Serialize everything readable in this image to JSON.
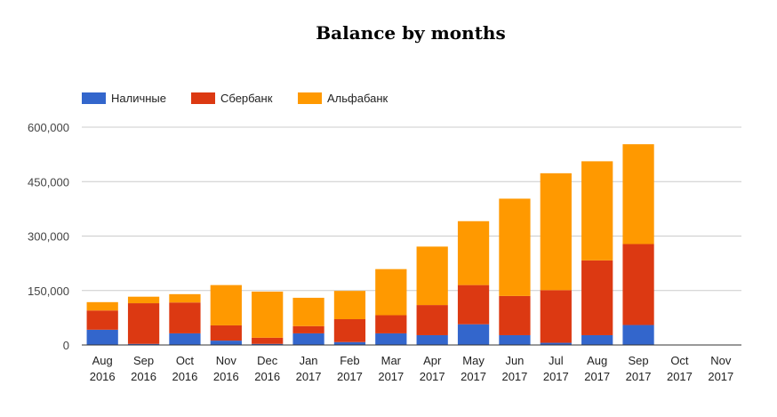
{
  "chart_data": {
    "type": "bar",
    "stacked": true,
    "title": "Balance by months",
    "xlabel": "",
    "ylabel": "",
    "ylim": [
      0,
      600000
    ],
    "yticks": [
      0,
      150000,
      300000,
      450000,
      600000
    ],
    "ytick_labels": [
      "0",
      "150,000",
      "300,000",
      "450,000",
      "600,000"
    ],
    "grid": true,
    "legend_position": "top-left",
    "categories": [
      {
        "month": "Aug",
        "year": "2016"
      },
      {
        "month": "Sep",
        "year": "2016"
      },
      {
        "month": "Oct",
        "year": "2016"
      },
      {
        "month": "Nov",
        "year": "2016"
      },
      {
        "month": "Dec",
        "year": "2016"
      },
      {
        "month": "Jan",
        "year": "2017"
      },
      {
        "month": "Feb",
        "year": "2017"
      },
      {
        "month": "Mar",
        "year": "2017"
      },
      {
        "month": "Apr",
        "year": "2017"
      },
      {
        "month": "May",
        "year": "2017"
      },
      {
        "month": "Jun",
        "year": "2017"
      },
      {
        "month": "Jul",
        "year": "2017"
      },
      {
        "month": "Aug",
        "year": "2017"
      },
      {
        "month": "Sep",
        "year": "2017"
      },
      {
        "month": "Oct",
        "year": "2017"
      },
      {
        "month": "Nov",
        "year": "2017"
      }
    ],
    "series": [
      {
        "name": "Наличные",
        "color": "#3366cc",
        "values": [
          42000,
          3000,
          32000,
          12000,
          3000,
          32000,
          8000,
          32000,
          27000,
          57000,
          27000,
          6000,
          27000,
          55000,
          0,
          0
        ]
      },
      {
        "name": "Сбербанк",
        "color": "#dc3912",
        "values": [
          53000,
          112000,
          85000,
          42000,
          17000,
          20000,
          63000,
          50000,
          83000,
          108000,
          108000,
          145000,
          206000,
          223000,
          0,
          0
        ]
      },
      {
        "name": "Альфабанк",
        "color": "#ff9900",
        "values": [
          23000,
          18000,
          23000,
          111000,
          127000,
          78000,
          78000,
          127000,
          161000,
          176000,
          268000,
          322000,
          273000,
          275000,
          0,
          0
        ]
      }
    ]
  }
}
